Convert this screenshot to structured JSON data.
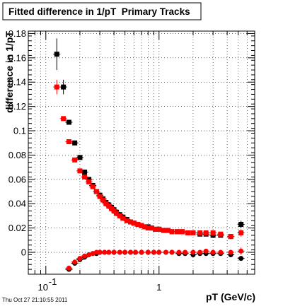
{
  "chart_data": {
    "type": "scatter",
    "title": "Fitted difference in 1/pT  Primary Tracks",
    "xlabel": "pT (GeV/c)",
    "ylabel": "difference in 1/pT",
    "xscale": "log",
    "xlim": [
      0.07,
      7
    ],
    "ylim": [
      -0.018,
      0.182
    ],
    "xticks": [
      {
        "value": 0.1,
        "label": "10",
        "sup": "-1"
      },
      {
        "value": 1,
        "label": "1",
        "sup": ""
      }
    ],
    "yticks": [
      0,
      0.02,
      0.04,
      0.06,
      0.08,
      0.1,
      0.12,
      0.14,
      0.16,
      0.18
    ],
    "grid": true,
    "footer": "Thu Oct 27 21:10:55 2011",
    "series": [
      {
        "marker": "square",
        "color": "#000000",
        "points": [
          [
            0.125,
            0.163,
            0.013
          ],
          [
            0.143,
            0.136,
            0.006
          ],
          [
            0.16,
            0.107,
            0.0015
          ],
          [
            0.18,
            0.09,
            0.001
          ],
          [
            0.2,
            0.078,
            0.001
          ],
          [
            0.22,
            0.066,
            0.001
          ],
          [
            0.24,
            0.06,
            0
          ],
          [
            0.26,
            0.055,
            0
          ],
          [
            0.28,
            0.05,
            0
          ],
          [
            0.3,
            0.047,
            0
          ],
          [
            0.32,
            0.044,
            0
          ],
          [
            0.34,
            0.041,
            0
          ],
          [
            0.36,
            0.039,
            0
          ],
          [
            0.38,
            0.037,
            0
          ],
          [
            0.4,
            0.035,
            0
          ],
          [
            0.42,
            0.033,
            0
          ],
          [
            0.45,
            0.031,
            0
          ],
          [
            0.48,
            0.029,
            0
          ],
          [
            0.52,
            0.027,
            0
          ],
          [
            0.56,
            0.025,
            0
          ],
          [
            0.6,
            0.024,
            0
          ],
          [
            0.65,
            0.023,
            0
          ],
          [
            0.7,
            0.022,
            0
          ],
          [
            0.75,
            0.021,
            0
          ],
          [
            0.8,
            0.021,
            0
          ],
          [
            0.86,
            0.02,
            0
          ],
          [
            0.93,
            0.019,
            0
          ],
          [
            1.0,
            0.019,
            0
          ],
          [
            1.1,
            0.018,
            0
          ],
          [
            1.2,
            0.018,
            0
          ],
          [
            1.3,
            0.017,
            0
          ],
          [
            1.45,
            0.017,
            0
          ],
          [
            1.6,
            0.017,
            0
          ],
          [
            1.8,
            0.016,
            0
          ],
          [
            2.0,
            0.016,
            0
          ],
          [
            2.3,
            0.015,
            0
          ],
          [
            2.6,
            0.015,
            0
          ],
          [
            3.0,
            0.014,
            0
          ],
          [
            3.5,
            0.014,
            0
          ],
          [
            4.3,
            0.013,
            0.002
          ],
          [
            5.3,
            0.023,
            0.003
          ]
        ]
      },
      {
        "marker": "square",
        "color": "#ff0000",
        "points": [
          [
            0.125,
            0.136,
            0.006
          ],
          [
            0.143,
            0.11,
            0.0015
          ],
          [
            0.16,
            0.091,
            0.001
          ],
          [
            0.18,
            0.076,
            0.001
          ],
          [
            0.2,
            0.067,
            0
          ],
          [
            0.22,
            0.062,
            0
          ],
          [
            0.24,
            0.058,
            0
          ],
          [
            0.26,
            0.054,
            0
          ],
          [
            0.28,
            0.05,
            0
          ],
          [
            0.3,
            0.046,
            0
          ],
          [
            0.32,
            0.043,
            0
          ],
          [
            0.34,
            0.04,
            0
          ],
          [
            0.36,
            0.038,
            0
          ],
          [
            0.38,
            0.036,
            0
          ],
          [
            0.4,
            0.034,
            0
          ],
          [
            0.42,
            0.032,
            0
          ],
          [
            0.45,
            0.03,
            0
          ],
          [
            0.48,
            0.028,
            0
          ],
          [
            0.52,
            0.026,
            0
          ],
          [
            0.56,
            0.025,
            0
          ],
          [
            0.6,
            0.024,
            0
          ],
          [
            0.65,
            0.023,
            0
          ],
          [
            0.7,
            0.022,
            0
          ],
          [
            0.75,
            0.021,
            0
          ],
          [
            0.8,
            0.02,
            0
          ],
          [
            0.86,
            0.02,
            0
          ],
          [
            0.93,
            0.019,
            0
          ],
          [
            1.0,
            0.019,
            0
          ],
          [
            1.1,
            0.018,
            0
          ],
          [
            1.2,
            0.018,
            0
          ],
          [
            1.3,
            0.017,
            0
          ],
          [
            1.45,
            0.017,
            0
          ],
          [
            1.6,
            0.017,
            0
          ],
          [
            1.8,
            0.016,
            0
          ],
          [
            2.0,
            0.016,
            0
          ],
          [
            2.3,
            0.016,
            0
          ],
          [
            2.6,
            0.016,
            0
          ],
          [
            3.0,
            0.016,
            0
          ],
          [
            3.5,
            0.015,
            0
          ],
          [
            4.3,
            0.013,
            0.002
          ],
          [
            5.3,
            0.016,
            0.003
          ]
        ]
      },
      {
        "marker": "circle",
        "color": "#000000",
        "points": [
          [
            0.16,
            -0.014,
            0
          ],
          [
            0.18,
            -0.009,
            0
          ],
          [
            0.2,
            -0.006,
            0
          ],
          [
            0.22,
            -0.004,
            0
          ],
          [
            0.24,
            -0.002,
            0
          ],
          [
            0.26,
            -0.001,
            0
          ],
          [
            0.28,
            -0.001,
            0
          ],
          [
            0.3,
            0.0,
            0
          ],
          [
            0.33,
            0.0,
            0
          ],
          [
            0.36,
            0.0,
            0
          ],
          [
            0.4,
            0.0,
            0
          ],
          [
            0.45,
            0.0,
            0
          ],
          [
            0.5,
            0.0,
            0
          ],
          [
            0.56,
            0.0,
            0
          ],
          [
            0.62,
            0.0,
            0
          ],
          [
            0.7,
            0.0,
            0
          ],
          [
            0.8,
            0.0,
            0
          ],
          [
            0.9,
            0.0,
            0
          ],
          [
            1.0,
            0.0,
            0
          ],
          [
            1.15,
            0.0,
            0
          ],
          [
            1.3,
            0.0,
            0
          ],
          [
            1.5,
            -0.001,
            0
          ],
          [
            1.7,
            -0.001,
            0
          ],
          [
            2.0,
            -0.002,
            0
          ],
          [
            2.3,
            -0.001,
            0
          ],
          [
            2.6,
            -0.001,
            0
          ],
          [
            3.0,
            -0.001,
            0
          ],
          [
            3.5,
            -0.001,
            0
          ],
          [
            4.3,
            -0.002,
            0.002
          ],
          [
            5.3,
            -0.005,
            0.002
          ]
        ]
      },
      {
        "marker": "circle",
        "color": "#ff0000",
        "points": [
          [
            0.16,
            -0.013,
            0
          ],
          [
            0.18,
            -0.008,
            0
          ],
          [
            0.2,
            -0.005,
            0
          ],
          [
            0.22,
            -0.003,
            0
          ],
          [
            0.24,
            -0.002,
            0
          ],
          [
            0.26,
            -0.001,
            0
          ],
          [
            0.28,
            0.0,
            0
          ],
          [
            0.3,
            0.0,
            0
          ],
          [
            0.33,
            0.0,
            0
          ],
          [
            0.36,
            0.0,
            0
          ],
          [
            0.4,
            0.0,
            0
          ],
          [
            0.45,
            0.0,
            0
          ],
          [
            0.5,
            0.0,
            0
          ],
          [
            0.56,
            0.0,
            0
          ],
          [
            0.62,
            0.0,
            0
          ],
          [
            0.7,
            0.0,
            0
          ],
          [
            0.8,
            0.0,
            0
          ],
          [
            0.9,
            0.0,
            0
          ],
          [
            1.0,
            0.0,
            0
          ],
          [
            1.15,
            0.0,
            0
          ],
          [
            1.3,
            0.0,
            0
          ],
          [
            1.5,
            0.0,
            0
          ],
          [
            1.7,
            0.0,
            0
          ],
          [
            2.0,
            0.0,
            0
          ],
          [
            2.3,
            0.0,
            0
          ],
          [
            2.6,
            0.001,
            0
          ],
          [
            3.0,
            0.0,
            0
          ],
          [
            3.5,
            0.0,
            0
          ],
          [
            4.3,
            0.0,
            0.002
          ],
          [
            5.3,
            0.001,
            0.003
          ]
        ]
      }
    ]
  }
}
